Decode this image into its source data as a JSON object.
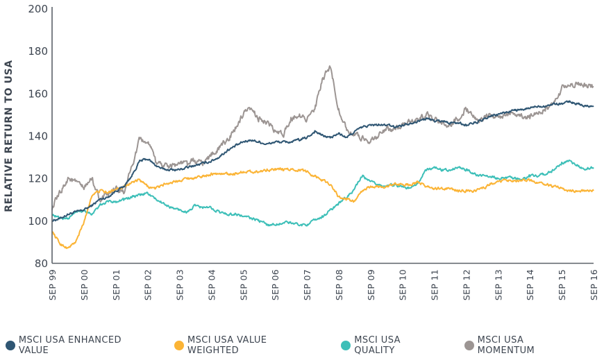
{
  "chart_data": {
    "type": "line",
    "title": "",
    "xlabel": "",
    "ylabel": "RELATIVE RETURN TO USA",
    "ylim": [
      80,
      200
    ],
    "yticks": [
      80,
      100,
      120,
      140,
      160,
      180,
      200
    ],
    "ytick_labels": [
      "80",
      "100",
      "120",
      "140",
      "160",
      "180",
      "200"
    ],
    "xlim": [
      1999.67,
      2016.67
    ],
    "xtick_labels": [
      "SEP 99",
      "SEP 00",
      "SEP 01",
      "SEP 02",
      "SEP 03",
      "SEP 04",
      "SEP 05",
      "SEP 06",
      "SEP 07",
      "SEP 08",
      "SEP 09",
      "SEP 10",
      "SEP 11",
      "SEP 12",
      "SEP 13",
      "SEP 14",
      "SEP 15",
      "SEP 16"
    ],
    "xticks": [
      1999.67,
      2000.67,
      2001.67,
      2002.67,
      2003.67,
      2004.67,
      2005.67,
      2006.67,
      2007.67,
      2008.67,
      2009.67,
      2010.67,
      2011.67,
      2012.67,
      2013.67,
      2014.67,
      2015.67,
      2016.67
    ],
    "grid": false,
    "legend_position": "bottom",
    "x": [
      1999.67,
      1999.92,
      2000.17,
      2000.42,
      2000.67,
      2000.92,
      2001.17,
      2001.42,
      2001.67,
      2001.92,
      2002.17,
      2002.42,
      2002.67,
      2002.92,
      2003.17,
      2003.42,
      2003.67,
      2003.92,
      2004.17,
      2004.42,
      2004.67,
      2004.92,
      2005.17,
      2005.42,
      2005.67,
      2005.92,
      2006.17,
      2006.42,
      2006.67,
      2006.92,
      2007.17,
      2007.42,
      2007.67,
      2007.92,
      2008.17,
      2008.42,
      2008.67,
      2008.92,
      2009.17,
      2009.42,
      2009.67,
      2009.92,
      2010.17,
      2010.42,
      2010.67,
      2010.92,
      2011.17,
      2011.42,
      2011.67,
      2011.92,
      2012.17,
      2012.42,
      2012.67,
      2012.92,
      2013.17,
      2013.42,
      2013.67,
      2013.92,
      2014.17,
      2014.42,
      2014.67,
      2014.92,
      2015.17,
      2015.42,
      2015.67,
      2015.92,
      2016.17,
      2016.42,
      2016.67
    ],
    "series": [
      {
        "name": "MSCI USA ENHANCED VALUE",
        "color": "#2f5673",
        "values": [
          100,
          101,
          103,
          104,
          105,
          107,
          110,
          111,
          114,
          116,
          121,
          128,
          129,
          126,
          124,
          124,
          124,
          125,
          126,
          127,
          128,
          130,
          133,
          135,
          137,
          138,
          137,
          136,
          137,
          137,
          137,
          138,
          139,
          142,
          140,
          139,
          141,
          139,
          142,
          144,
          145,
          145,
          145,
          144,
          145,
          146,
          147,
          148,
          147,
          147,
          146,
          146,
          145,
          146,
          147,
          149,
          150,
          151,
          152,
          152,
          153,
          154,
          154,
          155,
          155,
          156,
          155,
          154,
          154
        ]
      },
      {
        "name": "MSCI USA VALUE WEIGHTED",
        "color": "#fbb436",
        "values": [
          95,
          89,
          87,
          90,
          99,
          112,
          114,
          113,
          115,
          116,
          118,
          119,
          116,
          115,
          117,
          118,
          119,
          120,
          120,
          121,
          122,
          122,
          122,
          122,
          123,
          123,
          123,
          124,
          124,
          124,
          124,
          124,
          123,
          121,
          119,
          117,
          111,
          110,
          109,
          114,
          116,
          116,
          116,
          117,
          117,
          117,
          118,
          116,
          115,
          115,
          115,
          114,
          114,
          114,
          115,
          117,
          118,
          119,
          119,
          119,
          119,
          118,
          117,
          116,
          115,
          114,
          114,
          114,
          114
        ]
      },
      {
        "name": "MSCI USA QUALITY",
        "color": "#3dbfb8",
        "values": [
          103,
          101,
          101,
          104,
          105,
          103,
          107,
          109,
          109,
          110,
          111,
          112,
          113,
          110,
          108,
          106,
          105,
          104,
          107,
          106,
          106,
          104,
          103,
          103,
          102,
          101,
          100,
          98,
          98,
          99,
          99,
          98,
          98,
          100,
          102,
          105,
          108,
          111,
          115,
          121,
          118,
          117,
          116,
          117,
          116,
          115,
          118,
          124,
          125,
          124,
          124,
          125,
          124,
          122,
          121,
          121,
          120,
          120,
          120,
          119,
          121,
          121,
          122,
          124,
          127,
          128,
          126,
          124,
          125
        ]
      },
      {
        "name": "MSCI USA MOMENTUM",
        "color": "#9c9593",
        "values": [
          106,
          113,
          120,
          118,
          115,
          120,
          110,
          112,
          115,
          113,
          125,
          138,
          137,
          128,
          126,
          126,
          127,
          127,
          128,
          127,
          131,
          134,
          138,
          143,
          150,
          152,
          148,
          146,
          142,
          140,
          148,
          150,
          148,
          152,
          167,
          172,
          152,
          143,
          140,
          139,
          138,
          140,
          143,
          143,
          145,
          146,
          148,
          150,
          148,
          146,
          145,
          148,
          153,
          149,
          147,
          150,
          149,
          150,
          151,
          149,
          149,
          151,
          153,
          155,
          162,
          164,
          165,
          164,
          163
        ]
      }
    ]
  }
}
